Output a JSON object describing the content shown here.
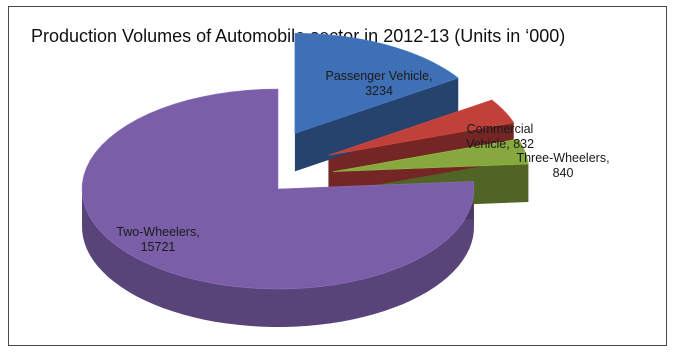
{
  "chart_data": {
    "type": "pie",
    "title": "Production Volumes of Automobile sector in 2012-13 (Units in ‘000)",
    "slices": [
      {
        "label": "Two-Wheelers",
        "value": 15721,
        "display": [
          "Two-Wheelers,",
          "15721"
        ],
        "color": "#7a5fa8",
        "exploded": false
      },
      {
        "label": "Passenger Vehicle",
        "value": 3234,
        "display": [
          "Passenger Vehicle,",
          "3234"
        ],
        "color": "#3f6fb5",
        "exploded": true
      },
      {
        "label": "Commercial Vehicle",
        "value": 832,
        "display": [
          "Commercial",
          "Vehicle, 832"
        ],
        "color": "#c0403a",
        "exploded": true
      },
      {
        "label": "Three-Wheelers",
        "value": 840,
        "display": [
          "Three-Wheelers,",
          "840"
        ],
        "color": "#86a83e",
        "exploded": true
      }
    ],
    "style": "3d",
    "legend": "none"
  }
}
